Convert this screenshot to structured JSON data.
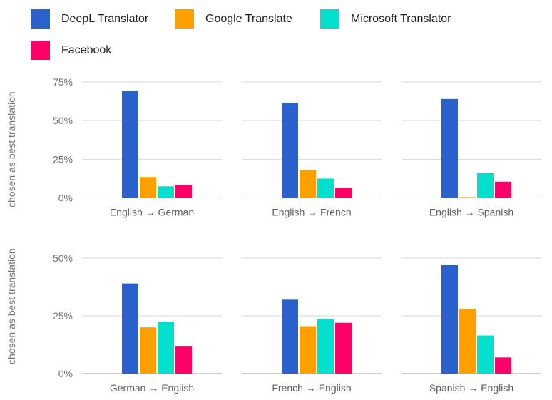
{
  "legend": [
    {
      "label": "DeepL Translator",
      "color": "#2962cc"
    },
    {
      "label": "Google Translate",
      "color": "#ffa000"
    },
    {
      "label": "Microsoft Translator",
      "color": "#00e0cc"
    },
    {
      "label": "Facebook",
      "color": "#ff0066"
    }
  ],
  "ylabel": "chosen as best translation",
  "chart_data": [
    {
      "type": "bar",
      "row": "top",
      "xlabel": "English → German",
      "series": [
        {
          "name": "DeepL Translator",
          "values": [
            69
          ]
        },
        {
          "name": "Google Translate",
          "values": [
            13.5
          ]
        },
        {
          "name": "Microsoft Translator",
          "values": [
            7.5
          ]
        },
        {
          "name": "Facebook",
          "values": [
            8.5
          ]
        }
      ],
      "ylim": [
        0,
        75
      ],
      "yticks": [
        "0%",
        "25%",
        "50%",
        "75%"
      ],
      "ytick_values": [
        0,
        25,
        50,
        75
      ],
      "show_yticks": true
    },
    {
      "type": "bar",
      "row": "top",
      "xlabel": "English → French",
      "series": [
        {
          "name": "DeepL Translator",
          "values": [
            61.5
          ]
        },
        {
          "name": "Google Translate",
          "values": [
            18
          ]
        },
        {
          "name": "Microsoft Translator",
          "values": [
            12.5
          ]
        },
        {
          "name": "Facebook",
          "values": [
            6.5
          ]
        }
      ],
      "ylim": [
        0,
        75
      ],
      "ytick_values": [
        0,
        25,
        50,
        75
      ],
      "show_yticks": false
    },
    {
      "type": "bar",
      "row": "top",
      "xlabel": "English → Spanish",
      "series": [
        {
          "name": "DeepL Translator",
          "values": [
            64
          ]
        },
        {
          "name": "Google Translate",
          "values": [
            0.5
          ]
        },
        {
          "name": "Microsoft Translator",
          "values": [
            16
          ]
        },
        {
          "name": "Facebook",
          "values": [
            10.5
          ]
        }
      ],
      "ylim": [
        0,
        75
      ],
      "ytick_values": [
        0,
        25,
        50,
        75
      ],
      "show_yticks": false
    },
    {
      "type": "bar",
      "row": "bottom",
      "xlabel": "German → English",
      "series": [
        {
          "name": "DeepL Translator",
          "values": [
            39
          ]
        },
        {
          "name": "Google Translate",
          "values": [
            20
          ]
        },
        {
          "name": "Microsoft Translator",
          "values": [
            22.5
          ]
        },
        {
          "name": "Facebook",
          "values": [
            12
          ]
        }
      ],
      "ylim": [
        0,
        50
      ],
      "yticks": [
        "0%",
        "25%",
        "50%"
      ],
      "ytick_values": [
        0,
        25,
        50
      ],
      "show_yticks": true
    },
    {
      "type": "bar",
      "row": "bottom",
      "xlabel": "French → English",
      "series": [
        {
          "name": "DeepL Translator",
          "values": [
            32
          ]
        },
        {
          "name": "Google Translate",
          "values": [
            20.5
          ]
        },
        {
          "name": "Microsoft Translator",
          "values": [
            23.5
          ]
        },
        {
          "name": "Facebook",
          "values": [
            22
          ]
        }
      ],
      "ylim": [
        0,
        50
      ],
      "ytick_values": [
        0,
        25,
        50
      ],
      "show_yticks": false
    },
    {
      "type": "bar",
      "row": "bottom",
      "xlabel": "Spanish → English",
      "series": [
        {
          "name": "DeepL Translator",
          "values": [
            47
          ]
        },
        {
          "name": "Google Translate",
          "values": [
            28
          ]
        },
        {
          "name": "Microsoft Translator",
          "values": [
            16.5
          ]
        },
        {
          "name": "Facebook",
          "values": [
            7
          ]
        }
      ],
      "ylim": [
        0,
        50
      ],
      "ytick_values": [
        0,
        25,
        50
      ],
      "show_yticks": false
    }
  ]
}
